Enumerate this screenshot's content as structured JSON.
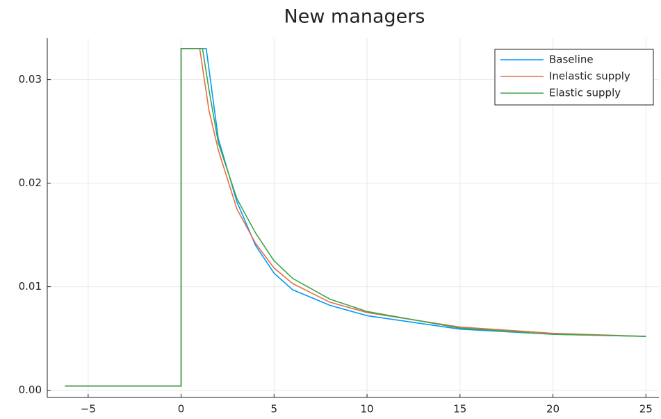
{
  "chart_data": {
    "type": "line",
    "title": "New managers",
    "xlim": [
      -7.2,
      25.7
    ],
    "ylim": [
      -0.0007,
      0.034
    ],
    "xticks": [
      {
        "value": -5,
        "label": "−5"
      },
      0,
      5,
      10,
      15,
      20,
      25
    ],
    "yticks": [
      {
        "value": 0,
        "label": "0.00"
      },
      {
        "value": 0.01,
        "label": "0.01"
      },
      {
        "value": 0.02,
        "label": "0.02"
      },
      {
        "value": 0.03,
        "label": "0.03"
      }
    ],
    "grid": true,
    "legend": "upper right",
    "series": [
      {
        "name": "Baseline",
        "color": "#009AFA",
        "x": [
          -6.25,
          0,
          0,
          1.35,
          2,
          3,
          4,
          5,
          6,
          8,
          10,
          15,
          20,
          25
        ],
        "values": [
          0.0004,
          0.0004,
          0.033,
          0.033,
          0.0243,
          0.0182,
          0.014,
          0.0113,
          0.0097,
          0.0082,
          0.0072,
          0.0059,
          0.0054,
          0.0052
        ]
      },
      {
        "name": "Inelastic supply",
        "color": "#E36F47",
        "x": [
          -6.25,
          0,
          0,
          1.0,
          1.5,
          2,
          3,
          4,
          5,
          6,
          8,
          10,
          15,
          20,
          25
        ],
        "values": [
          0.0004,
          0.0004,
          0.033,
          0.033,
          0.027,
          0.0232,
          0.0175,
          0.0142,
          0.0118,
          0.0103,
          0.0085,
          0.0075,
          0.0061,
          0.0055,
          0.0052
        ]
      },
      {
        "name": "Elastic supply",
        "color": "#3EA44E",
        "x": [
          -6.25,
          0,
          0,
          1.15,
          1.5,
          2,
          3,
          4,
          5,
          6,
          8,
          10,
          15,
          20,
          25
        ],
        "values": [
          0.0004,
          0.0004,
          0.033,
          0.033,
          0.029,
          0.0239,
          0.0185,
          0.0152,
          0.0125,
          0.0108,
          0.0088,
          0.0076,
          0.006,
          0.0054,
          0.0052
        ]
      }
    ]
  }
}
